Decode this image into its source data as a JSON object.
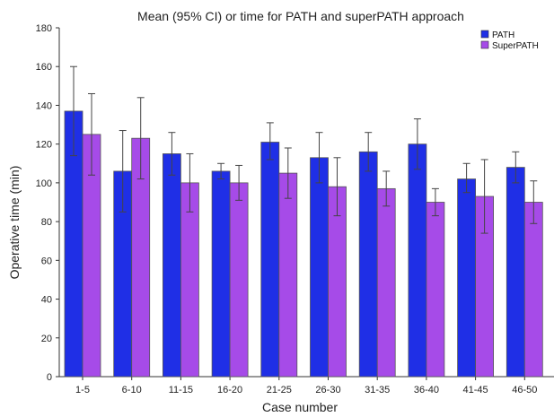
{
  "chart_data": {
    "type": "bar",
    "title": "Mean (95% CI) or time for PATH and superPATH approach",
    "xlabel": "Case number",
    "ylabel": "Operative time (min)",
    "ylim": [
      0,
      180
    ],
    "yticks": [
      0,
      20,
      40,
      60,
      80,
      100,
      120,
      140,
      160,
      180
    ],
    "categories": [
      "1-5",
      "6-10",
      "11-15",
      "16-20",
      "21-25",
      "26-30",
      "31-35",
      "36-40",
      "41-45",
      "46-50"
    ],
    "series": [
      {
        "name": "PATH",
        "color": "#1f2fe6",
        "values": [
          137,
          106,
          115,
          106,
          121,
          113,
          116,
          120,
          102,
          108
        ],
        "ci_low": [
          114,
          85,
          104,
          102,
          112,
          100,
          106,
          107,
          95,
          100
        ],
        "ci_high": [
          160,
          127,
          126,
          110,
          131,
          126,
          126,
          133,
          110,
          116
        ]
      },
      {
        "name": "SuperPATH",
        "color": "#a64be8",
        "values": [
          125,
          123,
          100,
          100,
          105,
          98,
          97,
          90,
          93,
          90
        ],
        "ci_low": [
          104,
          102,
          85,
          91,
          92,
          83,
          88,
          83,
          74,
          79
        ],
        "ci_high": [
          146,
          144,
          115,
          109,
          118,
          113,
          106,
          97,
          112,
          101
        ]
      }
    ],
    "grid": false,
    "legend_position": "top-right"
  }
}
